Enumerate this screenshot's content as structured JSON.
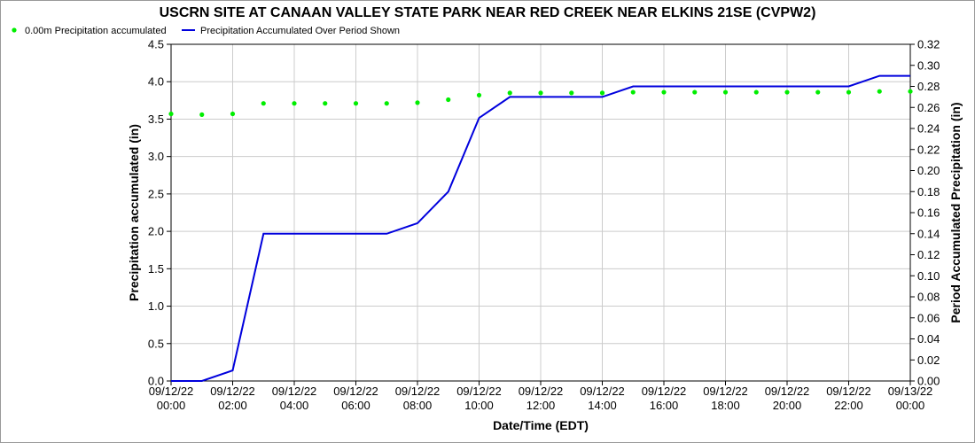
{
  "chart_data": {
    "type": "line",
    "title": "USCRN SITE AT CANAAN VALLEY STATE PARK NEAR RED CREEK NEAR ELKINS 21SE (CVPW2)",
    "xlabel": "Date/Time (EDT)",
    "ylabel_left": "Precipitation accumulated (in)",
    "ylabel_right": "Period Accumulated Precipitation (in)",
    "ylim_left": [
      0,
      4.5
    ],
    "ylim_right": [
      0,
      0.32
    ],
    "xlim": [
      "09/12/22 00:00",
      "09/13/22 00:00"
    ],
    "yticks_left": [
      "0.0",
      "0.5",
      "1.0",
      "1.5",
      "2.0",
      "2.5",
      "3.0",
      "3.5",
      "4.0",
      "4.5"
    ],
    "yticks_right": [
      "0.00",
      "0.02",
      "0.04",
      "0.06",
      "0.08",
      "0.10",
      "0.12",
      "0.14",
      "0.16",
      "0.18",
      "0.20",
      "0.22",
      "0.24",
      "0.26",
      "0.28",
      "0.30",
      "0.32"
    ],
    "xticks": [
      {
        "date": "09/12/22",
        "time": "00:00",
        "hour": 0
      },
      {
        "date": "09/12/22",
        "time": "02:00",
        "hour": 2
      },
      {
        "date": "09/12/22",
        "time": "04:00",
        "hour": 4
      },
      {
        "date": "09/12/22",
        "time": "06:00",
        "hour": 6
      },
      {
        "date": "09/12/22",
        "time": "08:00",
        "hour": 8
      },
      {
        "date": "09/12/22",
        "time": "10:00",
        "hour": 10
      },
      {
        "date": "09/12/22",
        "time": "12:00",
        "hour": 12
      },
      {
        "date": "09/12/22",
        "time": "14:00",
        "hour": 14
      },
      {
        "date": "09/12/22",
        "time": "16:00",
        "hour": 16
      },
      {
        "date": "09/12/22",
        "time": "18:00",
        "hour": 18
      },
      {
        "date": "09/12/22",
        "time": "20:00",
        "hour": 20
      },
      {
        "date": "09/12/22",
        "time": "22:00",
        "hour": 22
      },
      {
        "date": "09/13/22",
        "time": "00:00",
        "hour": 24
      }
    ],
    "grid": true,
    "legend_placement": "top-left",
    "series": [
      {
        "name": "0.00m Precipitation accumulated",
        "axis": "left",
        "style": "points",
        "color": "#00ee00",
        "x": [
          "09/12/22 00:00",
          "09/12/22 01:00",
          "09/12/22 02:00",
          "09/12/22 03:00",
          "09/12/22 04:00",
          "09/12/22 05:00",
          "09/12/22 06:00",
          "09/12/22 07:00",
          "09/12/22 08:00",
          "09/12/22 09:00",
          "09/12/22 10:00",
          "09/12/22 11:00",
          "09/12/22 12:00",
          "09/12/22 13:00",
          "09/12/22 14:00",
          "09/12/22 15:00",
          "09/12/22 16:00",
          "09/12/22 17:00",
          "09/12/22 18:00",
          "09/12/22 19:00",
          "09/12/22 20:00",
          "09/12/22 21:00",
          "09/12/22 22:00",
          "09/12/22 23:00",
          "09/13/22 00:00"
        ],
        "values": [
          3.57,
          3.56,
          3.57,
          3.71,
          3.71,
          3.71,
          3.71,
          3.71,
          3.72,
          3.76,
          3.82,
          3.85,
          3.85,
          3.85,
          3.85,
          3.86,
          3.86,
          3.86,
          3.86,
          3.86,
          3.86,
          3.86,
          3.86,
          3.87,
          3.87
        ]
      },
      {
        "name": "Precipitation Accumulated Over Period Shown",
        "axis": "right",
        "style": "line",
        "color": "#0000dd",
        "x": [
          "09/12/22 00:00",
          "09/12/22 01:00",
          "09/12/22 02:00",
          "09/12/22 03:00",
          "09/12/22 04:00",
          "09/12/22 05:00",
          "09/12/22 06:00",
          "09/12/22 07:00",
          "09/12/22 08:00",
          "09/12/22 09:00",
          "09/12/22 10:00",
          "09/12/22 11:00",
          "09/12/22 12:00",
          "09/12/22 13:00",
          "09/12/22 14:00",
          "09/12/22 15:00",
          "09/12/22 16:00",
          "09/12/22 17:00",
          "09/12/22 18:00",
          "09/12/22 19:00",
          "09/12/22 20:00",
          "09/12/22 21:00",
          "09/12/22 22:00",
          "09/12/22 23:00",
          "09/13/22 00:00"
        ],
        "values": [
          0.0,
          0.0,
          0.01,
          0.14,
          0.14,
          0.14,
          0.14,
          0.14,
          0.15,
          0.18,
          0.25,
          0.27,
          0.27,
          0.27,
          0.27,
          0.28,
          0.28,
          0.28,
          0.28,
          0.28,
          0.28,
          0.28,
          0.28,
          0.29,
          0.29
        ]
      }
    ]
  }
}
